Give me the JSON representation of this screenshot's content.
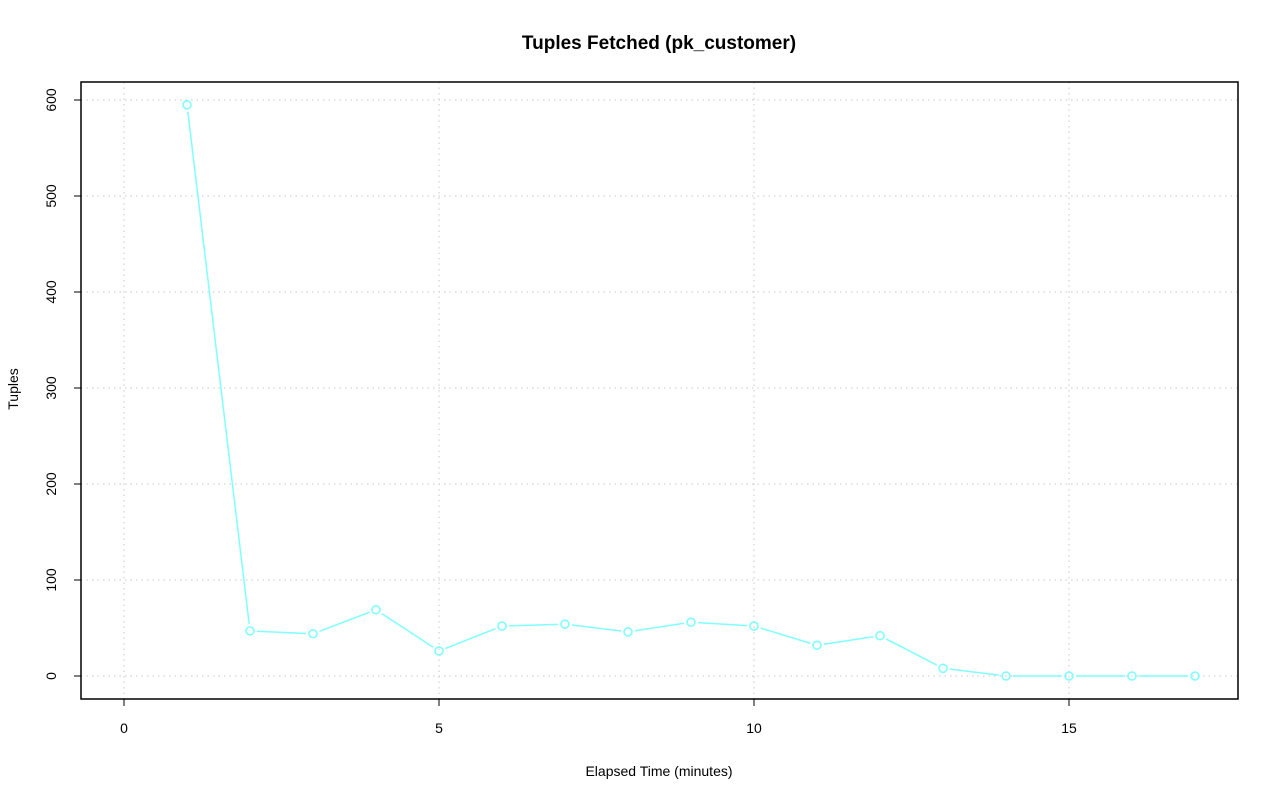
{
  "chart_data": {
    "type": "line",
    "title": "Tuples Fetched (pk_customer)",
    "xlabel": "Elapsed Time (minutes)",
    "ylabel": "Tuples",
    "xlim": [
      -0.7,
      17.7
    ],
    "ylim": [
      -25,
      620
    ],
    "xticks": [
      0,
      5,
      10,
      15
    ],
    "yticks": [
      0,
      100,
      200,
      300,
      400,
      500,
      600
    ],
    "xtick_labels": [
      "0",
      "5",
      "10",
      "15"
    ],
    "ytick_labels": [
      "0",
      "100",
      "200",
      "300",
      "400",
      "500",
      "600"
    ],
    "grid": true,
    "series": [
      {
        "name": "pk_customer",
        "color": "#7fffff",
        "x": [
          1,
          2,
          3,
          4,
          5,
          6,
          7,
          8,
          9,
          10,
          11,
          12,
          13,
          14,
          15,
          16,
          17
        ],
        "y": [
          595,
          47,
          44,
          69,
          26,
          52,
          54,
          46,
          56,
          52,
          32,
          42,
          8,
          0,
          0,
          0,
          0
        ]
      }
    ]
  }
}
